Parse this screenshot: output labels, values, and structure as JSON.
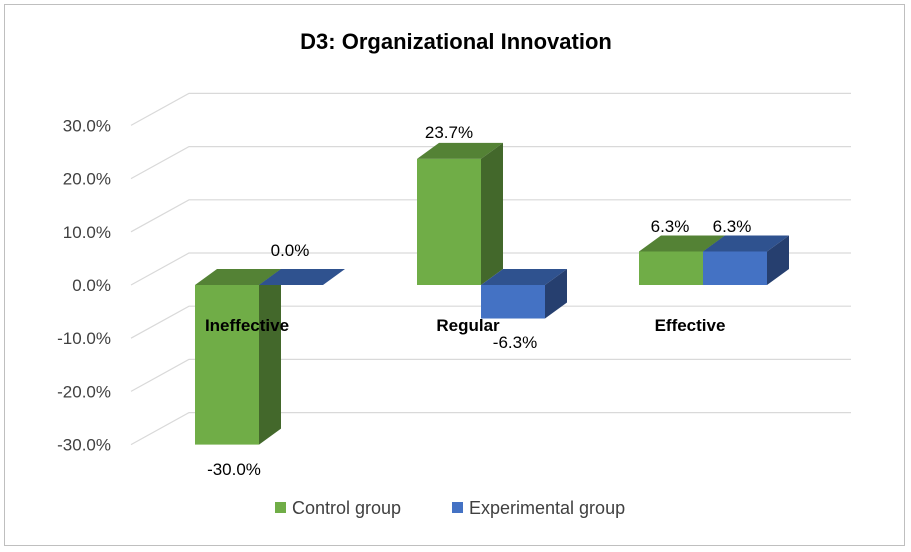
{
  "chart_data": {
    "type": "bar",
    "title": "D3: Organizational Innovation",
    "categories": [
      "Ineffective",
      "Regular",
      "Effective"
    ],
    "series": [
      {
        "name": "Control group",
        "values": [
          -30.0,
          23.7,
          6.3
        ],
        "labels": [
          "-30.0%",
          "23.7%",
          "6.3%"
        ]
      },
      {
        "name": "Experimental group",
        "values": [
          0.0,
          -6.3,
          6.3
        ],
        "labels": [
          "0.0%",
          "-6.3%",
          "6.3%"
        ]
      }
    ],
    "yticks": [
      30,
      20,
      10,
      0,
      -10,
      -20,
      -30
    ],
    "ytick_labels": [
      "30.0%",
      "20.0%",
      "10.0%",
      "0.0%",
      "-10.0%",
      "-20.0%",
      "-30.0%"
    ],
    "ylim": [
      -30,
      30
    ],
    "grid": true,
    "legend_position": "bottom",
    "colors": {
      "control_front": "#70ad47",
      "control_top": "#548235",
      "control_side": "#43682b",
      "experimental_front": "#4472c4",
      "experimental_top": "#2f528f",
      "experimental_side": "#263f6f"
    }
  }
}
